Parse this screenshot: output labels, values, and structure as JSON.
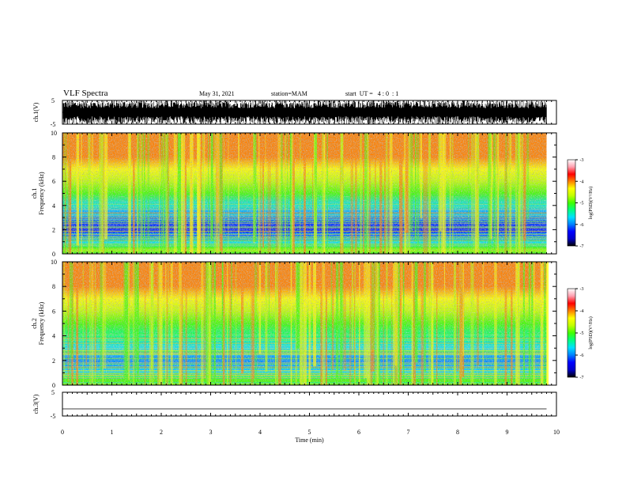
{
  "header": {
    "title": "VLF Spectra",
    "date": "May 31, 2021",
    "station": "station=MAM",
    "start": "start  UT =   4 : 0  : 1"
  },
  "colors": {
    "colormap": [
      "#000000",
      "#0000c8",
      "#0000ff",
      "#0080ff",
      "#00e0ff",
      "#00ff80",
      "#40ff00",
      "#c0ff00",
      "#ffff00",
      "#ff8000",
      "#ff0000",
      "#ffa0b0",
      "#ffffff"
    ],
    "waveform": "#000000",
    "frame": "#000000"
  },
  "chart_data": [
    {
      "type": "line",
      "name": "waveform-ch1",
      "ylabel": "ch.1(V)",
      "ylim": [
        -5,
        5
      ],
      "yticks": [
        "5",
        "-5"
      ],
      "xlim": [
        0,
        10
      ],
      "data_extent_min": 9.8,
      "series": [
        {
          "amplitude_range": [
            -5,
            5
          ]
        }
      ]
    },
    {
      "type": "heatmap",
      "name": "spectrogram-ch1",
      "ylabel_line1": "ch.1",
      "ylabel_line2": "Frequency (kHz)",
      "ylim": [
        0,
        10
      ],
      "yticks": [
        "0",
        "2",
        "4",
        "6",
        "8",
        "10"
      ],
      "xlim": [
        0,
        10
      ],
      "data_extent_min": 9.8,
      "colorbar": {
        "label": "log(PSD)(V²/Hz)",
        "range": [
          -7,
          -3
        ],
        "ticks": [
          "-3",
          "-4",
          "-5",
          "-6",
          "-7"
        ]
      },
      "profile": [
        {
          "freq_khz": 0,
          "log_psd": -5.0
        },
        {
          "freq_khz": 0.5,
          "log_psd": -4.9
        },
        {
          "freq_khz": 1,
          "log_psd": -6.0
        },
        {
          "freq_khz": 2,
          "log_psd": -6.4
        },
        {
          "freq_khz": 3,
          "log_psd": -6.3
        },
        {
          "freq_khz": 4,
          "log_psd": -6.0
        },
        {
          "freq_khz": 5,
          "log_psd": -5.2
        },
        {
          "freq_khz": 6,
          "log_psd": -4.6
        },
        {
          "freq_khz": 7,
          "log_psd": -4.2
        },
        {
          "freq_khz": 8,
          "log_psd": -4.0
        },
        {
          "freq_khz": 9,
          "log_psd": -3.9
        },
        {
          "freq_khz": 10,
          "log_psd": -3.8
        }
      ]
    },
    {
      "type": "heatmap",
      "name": "spectrogram-ch2",
      "ylabel_line1": "ch.2",
      "ylabel_line2": "Frequency (kHz)",
      "ylim": [
        0,
        10
      ],
      "yticks": [
        "0",
        "2",
        "4",
        "6",
        "8",
        "10"
      ],
      "xlim": [
        0,
        10
      ],
      "data_extent_min": 9.8,
      "colorbar": {
        "label": "log(PSD)(V²/Hz)",
        "range": [
          -7,
          -3
        ],
        "ticks": [
          "-3",
          "-4",
          "-5",
          "-6",
          "-7"
        ]
      },
      "profile": [
        {
          "freq_khz": 0,
          "log_psd": -5.0
        },
        {
          "freq_khz": 0.5,
          "log_psd": -5.2
        },
        {
          "freq_khz": 1,
          "log_psd": -5.8
        },
        {
          "freq_khz": 2,
          "log_psd": -6.2
        },
        {
          "freq_khz": 3,
          "log_psd": -6.0
        },
        {
          "freq_khz": 4,
          "log_psd": -5.6
        },
        {
          "freq_khz": 5,
          "log_psd": -5.0
        },
        {
          "freq_khz": 6,
          "log_psd": -4.5
        },
        {
          "freq_khz": 7,
          "log_psd": -4.1
        },
        {
          "freq_khz": 8,
          "log_psd": -3.9
        },
        {
          "freq_khz": 9,
          "log_psd": -3.8
        },
        {
          "freq_khz": 10,
          "log_psd": -3.7
        }
      ]
    },
    {
      "type": "line",
      "name": "waveform-ch3",
      "ylabel": "ch.3(V)",
      "ylim": [
        -5,
        5
      ],
      "yticks": [
        "5",
        "-5"
      ],
      "xlim": [
        0,
        10
      ],
      "series": [
        {
          "constant_value": -2
        }
      ]
    }
  ],
  "xaxis": {
    "label": "Time (min)",
    "ticks": [
      "0",
      "1",
      "2",
      "3",
      "4",
      "5",
      "6",
      "7",
      "8",
      "9",
      "10"
    ]
  }
}
